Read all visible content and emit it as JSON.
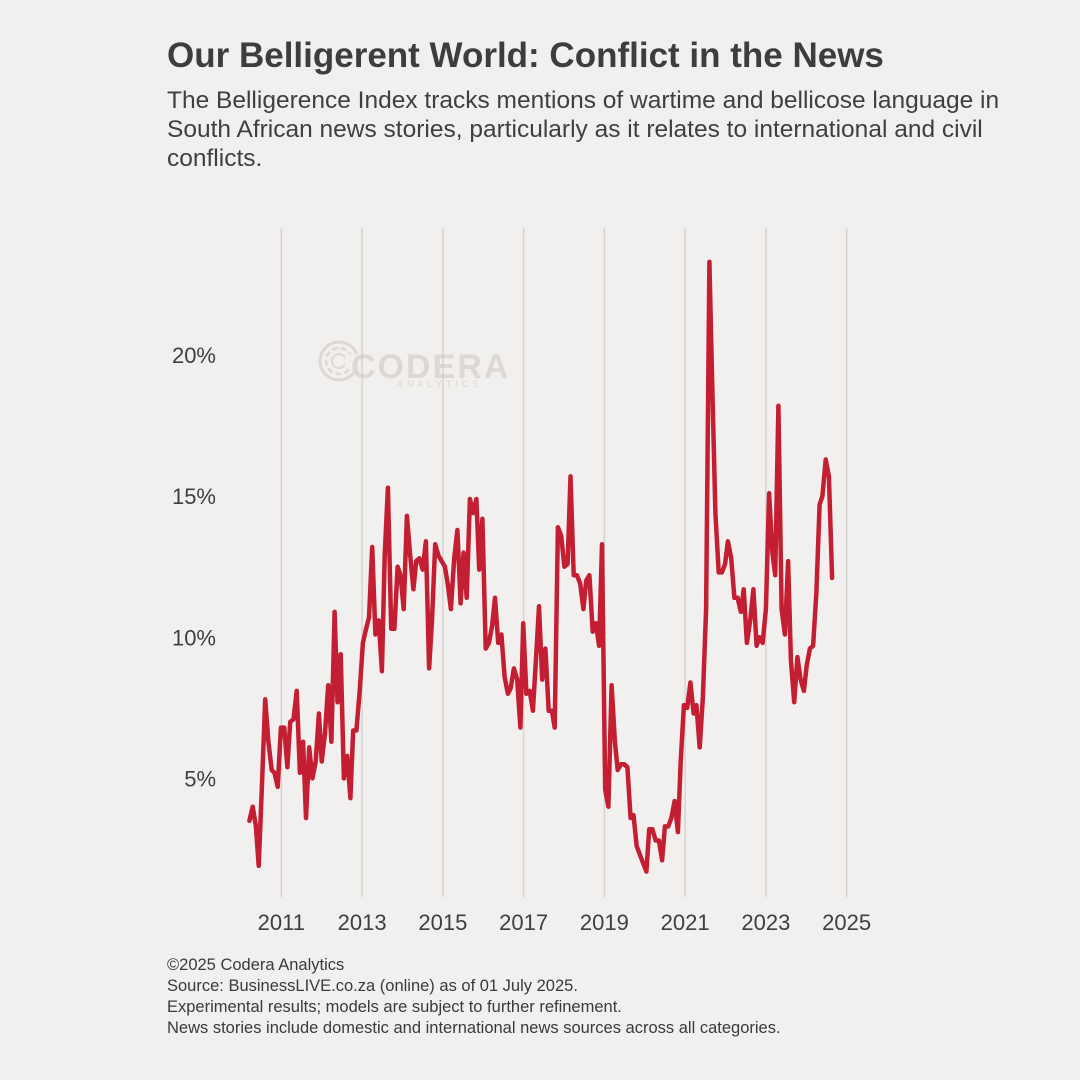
{
  "header": {
    "title": "Our Belligerent World: Conflict in the News",
    "subtitle": "The Belligerence Index tracks mentions of wartime and bellicose language in South African news stories, particularly as it relates to international and civil conflicts."
  },
  "watermark": {
    "brand": "CODERA",
    "sub": "ANALYTICS",
    "icon": "codera-c-logo-icon"
  },
  "footer": {
    "copyright": "©2025 Codera Analytics",
    "source": "Source: BusinessLIVE.co.za (online) as of 01 July 2025.",
    "note1": "Experimental results; models are subject to further refinement.",
    "note2": "News stories include domestic and international news sources across all categories."
  },
  "colors": {
    "background": "#f2f0ee",
    "line": "#c41e33",
    "grid": "#d6d3d0",
    "text": "#3f3f3f"
  },
  "chart_data": {
    "type": "line",
    "title": "Our Belligerent World: Conflict in the News",
    "xlabel": "",
    "ylabel": "",
    "xlim": [
      2010.1,
      2025.9
    ],
    "ylim": [
      0.8,
      24.5
    ],
    "grid": {
      "x": true,
      "y": false
    },
    "xticks": [
      2011,
      2013,
      2015,
      2017,
      2019,
      2021,
      2023,
      2025
    ],
    "xtick_labels": [
      "2011",
      "2013",
      "2015",
      "2017",
      "2019",
      "2021",
      "2023",
      "2025"
    ],
    "yticks": [
      5,
      10,
      15,
      20
    ],
    "ytick_labels": [
      "5%",
      "10%",
      "15%",
      "20%"
    ],
    "series": [
      {
        "color": "#c41e33",
        "points": [
          [
            2010.21,
            3.5
          ],
          [
            2010.29,
            4.0
          ],
          [
            2010.37,
            3.3
          ],
          [
            2010.44,
            1.9
          ],
          [
            2010.52,
            4.8
          ],
          [
            2010.6,
            7.8
          ],
          [
            2010.68,
            6.3
          ],
          [
            2010.76,
            5.3
          ],
          [
            2010.83,
            5.2
          ],
          [
            2010.91,
            4.7
          ],
          [
            2010.99,
            6.8
          ],
          [
            2011.07,
            6.8
          ],
          [
            2011.15,
            5.4
          ],
          [
            2011.22,
            7.0
          ],
          [
            2011.3,
            7.1
          ],
          [
            2011.38,
            8.1
          ],
          [
            2011.46,
            5.2
          ],
          [
            2011.54,
            6.3
          ],
          [
            2011.61,
            3.6
          ],
          [
            2011.69,
            6.1
          ],
          [
            2011.77,
            5.0
          ],
          [
            2011.85,
            5.6
          ],
          [
            2011.93,
            7.3
          ],
          [
            2012.0,
            5.6
          ],
          [
            2012.08,
            6.6
          ],
          [
            2012.16,
            8.3
          ],
          [
            2012.24,
            6.3
          ],
          [
            2012.32,
            10.9
          ],
          [
            2012.39,
            7.7
          ],
          [
            2012.47,
            9.4
          ],
          [
            2012.55,
            5.0
          ],
          [
            2012.63,
            5.8
          ],
          [
            2012.71,
            4.3
          ],
          [
            2012.78,
            6.7
          ],
          [
            2012.86,
            6.7
          ],
          [
            2012.94,
            8.1
          ],
          [
            2013.02,
            9.8
          ],
          [
            2013.1,
            10.3
          ],
          [
            2013.17,
            10.7
          ],
          [
            2013.25,
            13.2
          ],
          [
            2013.33,
            10.1
          ],
          [
            2013.41,
            10.6
          ],
          [
            2013.49,
            8.8
          ],
          [
            2013.56,
            12.9
          ],
          [
            2013.64,
            15.3
          ],
          [
            2013.72,
            10.3
          ],
          [
            2013.8,
            10.3
          ],
          [
            2013.88,
            12.5
          ],
          [
            2013.95,
            12.2
          ],
          [
            2014.03,
            11.0
          ],
          [
            2014.11,
            14.3
          ],
          [
            2014.19,
            12.9
          ],
          [
            2014.27,
            11.7
          ],
          [
            2014.34,
            12.7
          ],
          [
            2014.42,
            12.8
          ],
          [
            2014.5,
            12.4
          ],
          [
            2014.58,
            13.4
          ],
          [
            2014.66,
            8.9
          ],
          [
            2014.73,
            10.6
          ],
          [
            2014.81,
            13.3
          ],
          [
            2014.89,
            12.9
          ],
          [
            2014.97,
            12.7
          ],
          [
            2015.05,
            12.5
          ],
          [
            2015.12,
            11.9
          ],
          [
            2015.2,
            11.0
          ],
          [
            2015.28,
            12.8
          ],
          [
            2015.36,
            13.8
          ],
          [
            2015.44,
            11.2
          ],
          [
            2015.51,
            13.0
          ],
          [
            2015.59,
            11.4
          ],
          [
            2015.67,
            14.9
          ],
          [
            2015.75,
            14.4
          ],
          [
            2015.83,
            14.9
          ],
          [
            2015.9,
            12.4
          ],
          [
            2015.98,
            14.2
          ],
          [
            2016.06,
            9.6
          ],
          [
            2016.14,
            9.8
          ],
          [
            2016.22,
            10.4
          ],
          [
            2016.29,
            11.4
          ],
          [
            2016.37,
            9.8
          ],
          [
            2016.45,
            10.1
          ],
          [
            2016.53,
            8.6
          ],
          [
            2016.61,
            8.0
          ],
          [
            2016.68,
            8.2
          ],
          [
            2016.76,
            8.9
          ],
          [
            2016.84,
            8.5
          ],
          [
            2016.92,
            6.8
          ],
          [
            2016.99,
            10.5
          ],
          [
            2017.07,
            8.0
          ],
          [
            2017.15,
            8.1
          ],
          [
            2017.23,
            7.4
          ],
          [
            2017.31,
            9.3
          ],
          [
            2017.38,
            11.1
          ],
          [
            2017.46,
            8.5
          ],
          [
            2017.54,
            9.6
          ],
          [
            2017.62,
            7.4
          ],
          [
            2017.7,
            7.4
          ],
          [
            2017.77,
            6.8
          ],
          [
            2017.85,
            13.9
          ],
          [
            2017.93,
            13.6
          ],
          [
            2018.01,
            12.5
          ],
          [
            2018.09,
            12.6
          ],
          [
            2018.16,
            15.7
          ],
          [
            2018.24,
            12.2
          ],
          [
            2018.32,
            12.2
          ],
          [
            2018.4,
            11.9
          ],
          [
            2018.48,
            11.0
          ],
          [
            2018.55,
            12.0
          ],
          [
            2018.63,
            12.2
          ],
          [
            2018.71,
            10.2
          ],
          [
            2018.79,
            10.5
          ],
          [
            2018.87,
            9.7
          ],
          [
            2018.94,
            13.3
          ],
          [
            2019.02,
            4.6
          ],
          [
            2019.1,
            4.0
          ],
          [
            2019.18,
            8.3
          ],
          [
            2019.26,
            6.3
          ],
          [
            2019.33,
            5.3
          ],
          [
            2019.41,
            5.5
          ],
          [
            2019.49,
            5.5
          ],
          [
            2019.57,
            5.4
          ],
          [
            2019.65,
            3.6
          ],
          [
            2019.72,
            3.7
          ],
          [
            2019.8,
            2.6
          ],
          [
            2019.88,
            2.3
          ],
          [
            2019.96,
            2.0
          ],
          [
            2020.04,
            1.7
          ],
          [
            2020.11,
            3.2
          ],
          [
            2020.19,
            3.2
          ],
          [
            2020.27,
            2.8
          ],
          [
            2020.35,
            2.8
          ],
          [
            2020.43,
            2.1
          ],
          [
            2020.5,
            3.3
          ],
          [
            2020.58,
            3.3
          ],
          [
            2020.66,
            3.6
          ],
          [
            2020.74,
            4.2
          ],
          [
            2020.82,
            3.1
          ],
          [
            2020.89,
            5.6
          ],
          [
            2020.97,
            7.6
          ],
          [
            2021.05,
            7.5
          ],
          [
            2021.13,
            8.4
          ],
          [
            2021.21,
            7.3
          ],
          [
            2021.28,
            7.6
          ],
          [
            2021.36,
            6.1
          ],
          [
            2021.44,
            7.9
          ],
          [
            2021.52,
            11.0
          ],
          [
            2021.6,
            23.3
          ],
          [
            2021.67,
            19.0
          ],
          [
            2021.75,
            14.4
          ],
          [
            2021.83,
            12.3
          ],
          [
            2021.91,
            12.3
          ],
          [
            2021.99,
            12.6
          ],
          [
            2022.06,
            13.4
          ],
          [
            2022.14,
            12.8
          ],
          [
            2022.22,
            11.4
          ],
          [
            2022.3,
            11.4
          ],
          [
            2022.38,
            10.9
          ],
          [
            2022.45,
            11.7
          ],
          [
            2022.53,
            9.8
          ],
          [
            2022.61,
            10.6
          ],
          [
            2022.69,
            11.7
          ],
          [
            2022.77,
            9.7
          ],
          [
            2022.84,
            10.0
          ],
          [
            2022.92,
            9.8
          ],
          [
            2023.0,
            11.0
          ],
          [
            2023.08,
            15.1
          ],
          [
            2023.16,
            13.0
          ],
          [
            2023.23,
            12.2
          ],
          [
            2023.31,
            18.2
          ],
          [
            2023.39,
            11.0
          ],
          [
            2023.47,
            10.1
          ],
          [
            2023.55,
            12.7
          ],
          [
            2023.62,
            9.2
          ],
          [
            2023.7,
            7.7
          ],
          [
            2023.78,
            9.3
          ],
          [
            2023.86,
            8.5
          ],
          [
            2023.94,
            8.1
          ],
          [
            2024.01,
            9.0
          ],
          [
            2024.09,
            9.6
          ],
          [
            2024.17,
            9.7
          ],
          [
            2024.25,
            11.6
          ],
          [
            2024.33,
            14.7
          ],
          [
            2024.4,
            15.0
          ],
          [
            2024.48,
            16.3
          ],
          [
            2024.56,
            15.7
          ],
          [
            2024.64,
            12.1
          ]
        ]
      }
    ]
  }
}
